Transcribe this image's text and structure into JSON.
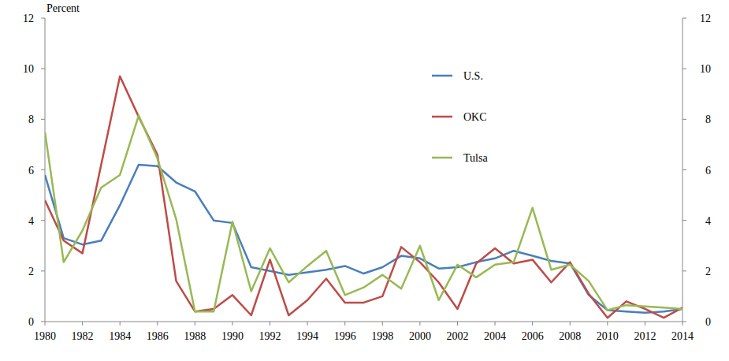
{
  "chart_data": {
    "type": "line",
    "ylabel": "Percent",
    "x": [
      1980,
      1981,
      1982,
      1983,
      1984,
      1985,
      1986,
      1987,
      1988,
      1989,
      1990,
      1991,
      1992,
      1993,
      1994,
      1995,
      1996,
      1997,
      1998,
      1999,
      2000,
      2001,
      2002,
      2003,
      2004,
      2005,
      2006,
      2007,
      2008,
      2009,
      2010,
      2011,
      2012,
      2013,
      2014
    ],
    "series": [
      {
        "name": "U.S.",
        "color": "#4a7ebb",
        "values": [
          5.8,
          3.3,
          3.05,
          3.2,
          4.6,
          6.2,
          6.15,
          5.5,
          5.15,
          4.0,
          3.9,
          2.15,
          2.0,
          1.85,
          1.95,
          2.05,
          2.2,
          1.9,
          2.15,
          2.6,
          2.5,
          2.1,
          2.15,
          2.35,
          2.5,
          2.8,
          2.6,
          2.4,
          2.3,
          1.05,
          0.45,
          0.4,
          0.35,
          0.4,
          0.5
        ]
      },
      {
        "name": "OKC",
        "color": "#be4b48",
        "values": [
          4.8,
          3.2,
          2.7,
          6.2,
          9.7,
          8.1,
          6.6,
          1.6,
          0.4,
          0.5,
          1.05,
          0.25,
          2.45,
          0.25,
          0.85,
          1.7,
          0.75,
          0.75,
          1.0,
          2.95,
          2.35,
          1.55,
          0.5,
          2.3,
          2.9,
          2.3,
          2.45,
          1.55,
          2.35,
          1.1,
          0.15,
          0.8,
          0.5,
          0.15,
          0.55
        ]
      },
      {
        "name": "Tulsa",
        "color": "#98b954",
        "values": [
          7.5,
          2.35,
          3.6,
          5.3,
          5.8,
          8.15,
          6.45,
          4.05,
          0.4,
          0.4,
          3.95,
          1.2,
          2.9,
          1.55,
          2.2,
          2.8,
          1.05,
          1.35,
          1.85,
          1.3,
          3.0,
          0.85,
          2.25,
          1.75,
          2.25,
          2.35,
          4.5,
          2.05,
          2.25,
          1.6,
          0.45,
          0.65,
          0.6,
          0.55,
          0.5
        ]
      }
    ],
    "xlim": [
      1980,
      2014
    ],
    "xticks": [
      1980,
      1982,
      1984,
      1986,
      1988,
      1990,
      1992,
      1994,
      1996,
      1998,
      2000,
      2002,
      2004,
      2006,
      2008,
      2010,
      2012,
      2014
    ],
    "ylim": [
      0,
      12
    ],
    "yticks": [
      0,
      2,
      4,
      6,
      8,
      10,
      12
    ],
    "y2lim": [
      0,
      12
    ],
    "y2ticks": [
      0,
      2,
      4,
      6,
      8,
      10,
      12
    ],
    "grid": false,
    "legend": "top-right"
  }
}
